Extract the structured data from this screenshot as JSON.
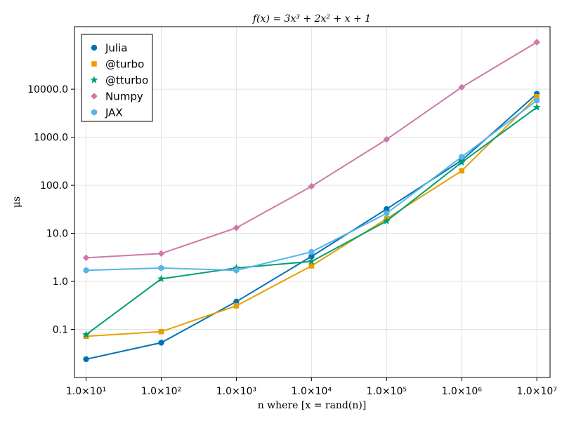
{
  "chart_data": {
    "type": "line",
    "title": "f(x) = 3x³ + 2x² + x + 1",
    "xlabel": "n where [x = rand(n)]",
    "ylabel": "μs",
    "x_scale": "log10",
    "y_scale": "log10",
    "x": [
      10,
      100,
      1000,
      10000,
      100000,
      1000000,
      10000000
    ],
    "x_tick_labels": [
      "1.0×10¹",
      "1.0×10²",
      "1.0×10³",
      "1.0×10⁴",
      "1.0×10⁵",
      "1.0×10⁶",
      "1.0×10⁷"
    ],
    "y_ticks": [
      0.1,
      1,
      10,
      100,
      1000,
      10000
    ],
    "y_tick_labels": [
      "0.1",
      "1.0",
      "10.0",
      "100.0",
      "1000.0",
      "10000.0"
    ],
    "xlim": [
      7,
      15000000
    ],
    "ylim": [
      0.01,
      200000
    ],
    "grid": true,
    "legend_position": "top-left",
    "series": [
      {
        "name": "Julia",
        "color": "#0072b2",
        "marker": "circle",
        "values": [
          0.024,
          0.053,
          0.38,
          3.3,
          32,
          330,
          8000
        ]
      },
      {
        "name": "@turbo",
        "color": "#e69f00",
        "marker": "square",
        "values": [
          0.072,
          0.09,
          0.31,
          2.1,
          20,
          200,
          7000
        ]
      },
      {
        "name": "@tturbo",
        "color": "#009e73",
        "marker": "star",
        "values": [
          0.078,
          1.13,
          1.9,
          2.6,
          18,
          300,
          4200
        ]
      },
      {
        "name": "Numpy",
        "color": "#cc79a7",
        "marker": "diamond",
        "values": [
          3.1,
          3.8,
          13,
          95,
          900,
          11000,
          95000
        ]
      },
      {
        "name": "JAX",
        "color": "#56b4e9",
        "marker": "hexagon",
        "values": [
          1.7,
          1.9,
          1.7,
          4.1,
          26,
          390,
          5800
        ]
      }
    ]
  }
}
